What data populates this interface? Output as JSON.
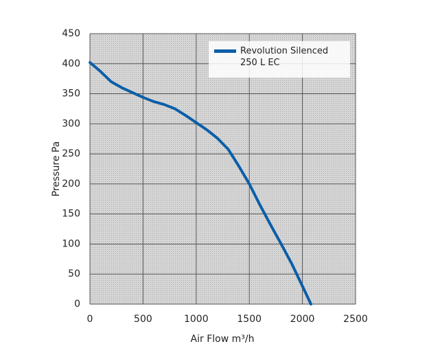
{
  "chart_data": {
    "type": "line",
    "xlabel": "Air Flow m³/h",
    "ylabel": "Pressure Pa",
    "x": [
      0,
      100,
      200,
      300,
      400,
      500,
      600,
      700,
      800,
      900,
      1000,
      1100,
      1200,
      1300,
      1400,
      1500,
      1600,
      1700,
      1800,
      1900,
      2000,
      2080
    ],
    "series": [
      {
        "name": "Revolution Silenced\n250  L EC",
        "color": "#0a5ea8",
        "values": [
          402,
          387,
          370,
          360,
          352,
          344,
          337,
          332,
          325,
          314,
          302,
          290,
          276,
          258,
          230,
          200,
          165,
          132,
          100,
          67,
          30,
          0
        ]
      }
    ],
    "xlim": [
      0,
      2500
    ],
    "xticks": [
      0,
      500,
      1000,
      1500,
      2000,
      2500
    ],
    "ylim": [
      0,
      450
    ],
    "yticks": [
      0,
      50,
      100,
      150,
      200,
      250,
      300,
      350,
      400,
      450
    ],
    "grid": true
  }
}
